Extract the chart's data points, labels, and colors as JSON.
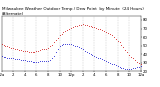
{
  "title": "Milwaukee Weather Outdoor Temp / Dew Point  by Minute  (24 Hours) (Alternate)",
  "title_fontsize": 3.0,
  "background_color": "#ffffff",
  "grid_color": "#aaaaaa",
  "temp_color": "#cc0000",
  "dew_color": "#0000cc",
  "xlabel_fontsize": 2.8,
  "ylabel_fontsize": 2.8,
  "ylim": [
    20,
    85
  ],
  "xlim": [
    0,
    1440
  ],
  "yticks": [
    20,
    30,
    40,
    50,
    60,
    70,
    80
  ],
  "ytick_labels": [
    "20",
    "30",
    "40",
    "50",
    "60",
    "70",
    "80"
  ],
  "xtick_positions": [
    0,
    120,
    240,
    360,
    480,
    600,
    720,
    840,
    960,
    1080,
    1200,
    1320,
    1440
  ],
  "xtick_labels": [
    "12a",
    "2",
    "4",
    "6",
    "8",
    "10",
    "12p",
    "2",
    "4",
    "6",
    "8",
    "10",
    "12a"
  ],
  "vgrid_positions": [
    120,
    240,
    360,
    480,
    600,
    720,
    840,
    960,
    1080,
    1200,
    1320
  ],
  "temp_x": [
    0,
    20,
    40,
    60,
    80,
    100,
    120,
    140,
    160,
    180,
    200,
    220,
    240,
    260,
    280,
    300,
    320,
    340,
    360,
    380,
    400,
    420,
    440,
    460,
    480,
    500,
    520,
    540,
    560,
    580,
    600,
    620,
    640,
    660,
    680,
    700,
    720,
    740,
    760,
    780,
    800,
    820,
    840,
    860,
    880,
    900,
    920,
    940,
    960,
    980,
    1000,
    1020,
    1040,
    1060,
    1080,
    1100,
    1120,
    1140,
    1160,
    1180,
    1200,
    1220,
    1240,
    1260,
    1280,
    1300,
    1320,
    1340,
    1360,
    1380,
    1400,
    1420,
    1440
  ],
  "temp_y": [
    52,
    51,
    50,
    49,
    48,
    47,
    47,
    46,
    46,
    45,
    45,
    44,
    44,
    44,
    43,
    43,
    43,
    43,
    44,
    44,
    45,
    46,
    46,
    46,
    47,
    49,
    51,
    54,
    57,
    59,
    62,
    64,
    66,
    67,
    68,
    70,
    71,
    72,
    73,
    73,
    74,
    74,
    75,
    74,
    74,
    73,
    73,
    72,
    72,
    71,
    70,
    69,
    68,
    67,
    66,
    65,
    64,
    62,
    60,
    58,
    56,
    54,
    51,
    48,
    45,
    42,
    39,
    37,
    35,
    33,
    31,
    30,
    29
  ],
  "dew_x": [
    0,
    20,
    40,
    60,
    80,
    100,
    120,
    140,
    160,
    180,
    200,
    220,
    240,
    260,
    280,
    300,
    320,
    340,
    360,
    380,
    400,
    420,
    440,
    460,
    480,
    500,
    520,
    540,
    560,
    580,
    600,
    620,
    640,
    660,
    680,
    700,
    720,
    740,
    760,
    780,
    800,
    820,
    840,
    860,
    880,
    900,
    920,
    940,
    960,
    980,
    1000,
    1020,
    1040,
    1060,
    1080,
    1100,
    1120,
    1140,
    1160,
    1180,
    1200,
    1220,
    1240,
    1260,
    1280,
    1300,
    1320,
    1340,
    1360,
    1380,
    1400,
    1420,
    1440
  ],
  "dew_y": [
    38,
    37,
    37,
    36,
    36,
    35,
    35,
    34,
    34,
    34,
    33,
    33,
    33,
    32,
    32,
    32,
    31,
    31,
    31,
    31,
    32,
    32,
    32,
    32,
    32,
    33,
    35,
    38,
    42,
    46,
    49,
    51,
    52,
    52,
    52,
    52,
    52,
    51,
    50,
    49,
    48,
    47,
    46,
    44,
    43,
    41,
    40,
    39,
    38,
    37,
    36,
    35,
    34,
    33,
    32,
    31,
    30,
    29,
    28,
    27,
    26,
    25,
    24,
    24,
    23,
    23,
    23,
    23,
    24,
    24,
    25,
    25,
    26
  ]
}
